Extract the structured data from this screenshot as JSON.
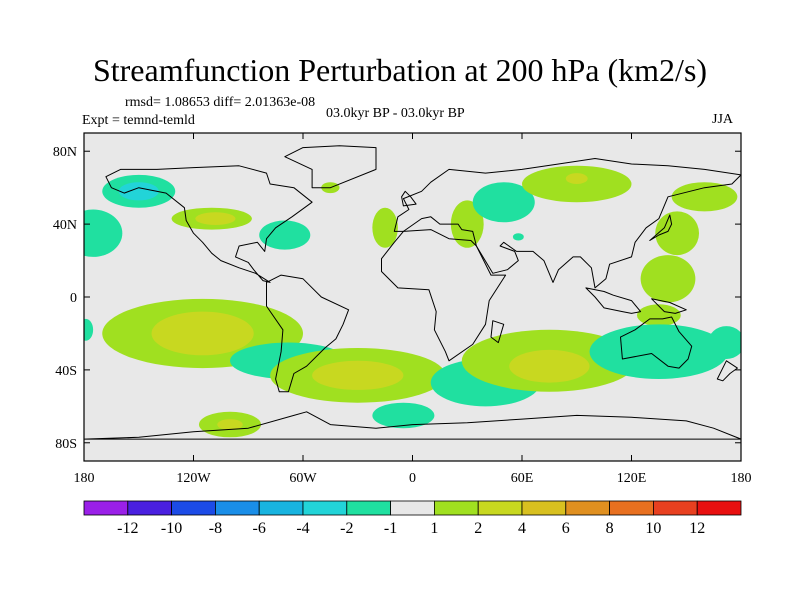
{
  "chart_data": {
    "type": "heatmap",
    "title": "Streamfunction Perturbation at 200 hPa (km2/s)",
    "stats": "rmsd= 1.08653 diff= 2.01363e-08",
    "experiment": "Expt = temnd-temld",
    "period": "03.0kyr BP - 03.0kyr BP",
    "season": "JJA",
    "x_axis": {
      "range": [
        -180,
        180
      ],
      "ticks": [
        {
          "value": -180,
          "label": "180"
        },
        {
          "value": -120,
          "label": "120W"
        },
        {
          "value": -60,
          "label": "60W"
        },
        {
          "value": 0,
          "label": "0"
        },
        {
          "value": 60,
          "label": "60E"
        },
        {
          "value": 120,
          "label": "120E"
        },
        {
          "value": 180,
          "label": "180"
        }
      ]
    },
    "y_axis": {
      "range": [
        -90,
        90
      ],
      "ticks": [
        {
          "value": 80,
          "label": "80N"
        },
        {
          "value": 40,
          "label": "40N"
        },
        {
          "value": 0,
          "label": "0"
        },
        {
          "value": -40,
          "label": "40S"
        },
        {
          "value": -80,
          "label": "80S"
        }
      ]
    },
    "colorbar": {
      "bins": [
        {
          "color": "#9a20e8"
        },
        {
          "color": "#4a20e0"
        },
        {
          "color": "#1c4be6"
        },
        {
          "color": "#1a8ee8"
        },
        {
          "color": "#18b4e0"
        },
        {
          "color": "#22d4d8"
        },
        {
          "color": "#20e0a0"
        },
        {
          "color": "#e8e8e8"
        },
        {
          "color": "#a0e020"
        },
        {
          "color": "#c8d820"
        },
        {
          "color": "#d8c020"
        },
        {
          "color": "#e09020"
        },
        {
          "color": "#e87020"
        },
        {
          "color": "#e84020"
        },
        {
          "color": "#e81010"
        }
      ],
      "labels": [
        "-12",
        "-10",
        "-8",
        "-6",
        "-4",
        "-2",
        "-1",
        "1",
        "2",
        "4",
        "6",
        "8",
        "10",
        "12"
      ]
    },
    "colors": {
      "background": "#e8e8e8",
      "pos1": "#a0e020",
      "pos2": "#c8d820",
      "pos3": "#d8c020",
      "neg1": "#20e0a0",
      "neg2": "#22d4d8"
    },
    "anomalies": [
      {
        "lon": -150,
        "lat": 58,
        "rlon": 20,
        "rlat": 9,
        "level": -2
      },
      {
        "lon": -150,
        "lat": 58,
        "rlon": 11,
        "rlat": 5,
        "level": -4
      },
      {
        "lon": -110,
        "lat": 43,
        "rlon": 22,
        "rlat": 6,
        "level": 2
      },
      {
        "lon": -108,
        "lat": 43,
        "rlon": 11,
        "rlat": 3.5,
        "level": 4
      },
      {
        "lon": -70,
        "lat": 34,
        "rlon": 14,
        "rlat": 8,
        "level": -1
      },
      {
        "lon": -175,
        "lat": 35,
        "rlon": 16,
        "rlat": 13,
        "level": -1
      },
      {
        "lon": -45,
        "lat": 60,
        "rlon": 5,
        "rlat": 3,
        "level": 2
      },
      {
        "lon": -15,
        "lat": 38,
        "rlon": 7,
        "rlat": 11,
        "level": 2
      },
      {
        "lon": 30,
        "lat": 40,
        "rlon": 9,
        "rlat": 13,
        "level": 2
      },
      {
        "lon": 50,
        "lat": 52,
        "rlon": 17,
        "rlat": 11,
        "level": -1
      },
      {
        "lon": 50,
        "lat": 48,
        "rlon": 10,
        "rlat": 5,
        "level": -2
      },
      {
        "lon": 58,
        "lat": 33,
        "rlon": 3,
        "rlat": 2,
        "level": -1
      },
      {
        "lon": 90,
        "lat": 62,
        "rlon": 30,
        "rlat": 10,
        "level": 2
      },
      {
        "lon": 90,
        "lat": 65,
        "rlon": 6,
        "rlat": 3,
        "level": 4
      },
      {
        "lon": 160,
        "lat": 55,
        "rlon": 18,
        "rlat": 8,
        "level": 2
      },
      {
        "lon": 145,
        "lat": 35,
        "rlon": 12,
        "rlat": 12,
        "level": 2
      },
      {
        "lon": 140,
        "lat": 10,
        "rlon": 15,
        "rlat": 13,
        "level": 2
      },
      {
        "lon": 135,
        "lat": -10,
        "rlon": 12,
        "rlat": 6,
        "level": 2
      },
      {
        "lon": -115,
        "lat": -20,
        "rlon": 55,
        "rlat": 19,
        "level": 2
      },
      {
        "lon": -115,
        "lat": -20,
        "rlon": 28,
        "rlat": 12,
        "level": 4
      },
      {
        "lon": -68,
        "lat": -35,
        "rlon": 32,
        "rlat": 10,
        "level": -1
      },
      {
        "lon": -68,
        "lat": -35,
        "rlon": 20,
        "rlat": 5,
        "level": -2
      },
      {
        "lon": -30,
        "lat": -43,
        "rlon": 48,
        "rlat": 15,
        "level": 2
      },
      {
        "lon": -30,
        "lat": -43,
        "rlon": 25,
        "rlat": 8,
        "level": 4
      },
      {
        "lon": 40,
        "lat": -47,
        "rlon": 30,
        "rlat": 13,
        "level": -1
      },
      {
        "lon": 40,
        "lat": -47,
        "rlon": 10,
        "rlat": 5,
        "level": -2
      },
      {
        "lon": 75,
        "lat": -35,
        "rlon": 48,
        "rlat": 17,
        "level": 2
      },
      {
        "lon": 75,
        "lat": -38,
        "rlon": 22,
        "rlat": 9,
        "level": 4
      },
      {
        "lon": 135,
        "lat": -30,
        "rlon": 38,
        "rlat": 15,
        "level": -1
      },
      {
        "lon": 130,
        "lat": -28,
        "rlon": 20,
        "rlat": 7,
        "level": -2
      },
      {
        "lon": 172,
        "lat": -25,
        "rlon": 10,
        "rlat": 9,
        "level": -1
      },
      {
        "lon": -100,
        "lat": -70,
        "rlon": 17,
        "rlat": 7,
        "level": 2
      },
      {
        "lon": -100,
        "lat": -70,
        "rlon": 7,
        "rlat": 3,
        "level": 4
      },
      {
        "lon": -5,
        "lat": -65,
        "rlon": 17,
        "rlat": 7,
        "level": -1
      },
      {
        "lon": -179,
        "lat": -18,
        "rlon": 4,
        "rlat": 6,
        "level": -1
      }
    ],
    "continents": [
      {
        "name": "North America",
        "points": [
          [
            -168,
            66
          ],
          [
            -160,
            70
          ],
          [
            -140,
            70
          ],
          [
            -120,
            71
          ],
          [
            -95,
            72
          ],
          [
            -80,
            68
          ],
          [
            -78,
            62
          ],
          [
            -65,
            60
          ],
          [
            -55,
            52
          ],
          [
            -66,
            44
          ],
          [
            -75,
            38
          ],
          [
            -80,
            32
          ],
          [
            -81,
            25
          ],
          [
            -85,
            30
          ],
          [
            -95,
            28
          ],
          [
            -97,
            22
          ],
          [
            -90,
            19
          ],
          [
            -87,
            15
          ],
          [
            -82,
            9
          ],
          [
            -78,
            8
          ],
          [
            -86,
            13
          ],
          [
            -95,
            16
          ],
          [
            -105,
            20
          ],
          [
            -110,
            24
          ],
          [
            -115,
            30
          ],
          [
            -120,
            35
          ],
          [
            -124,
            42
          ],
          [
            -125,
            49
          ],
          [
            -135,
            57
          ],
          [
            -150,
            60
          ],
          [
            -158,
            57
          ],
          [
            -165,
            60
          ]
        ]
      },
      {
        "name": "Greenland",
        "points": [
          [
            -55,
            60
          ],
          [
            -45,
            60
          ],
          [
            -20,
            70
          ],
          [
            -20,
            82
          ],
          [
            -40,
            83
          ],
          [
            -60,
            82
          ],
          [
            -70,
            77
          ],
          [
            -55,
            70
          ]
        ]
      },
      {
        "name": "South America",
        "points": [
          [
            -80,
            8
          ],
          [
            -72,
            12
          ],
          [
            -60,
            10
          ],
          [
            -50,
            0
          ],
          [
            -35,
            -7
          ],
          [
            -38,
            -15
          ],
          [
            -42,
            -23
          ],
          [
            -48,
            -28
          ],
          [
            -58,
            -38
          ],
          [
            -65,
            -42
          ],
          [
            -68,
            -52
          ],
          [
            -73,
            -52
          ],
          [
            -75,
            -45
          ],
          [
            -72,
            -30
          ],
          [
            -71,
            -18
          ],
          [
            -80,
            -5
          ]
        ]
      },
      {
        "name": "Eurasia",
        "points": [
          [
            -10,
            36
          ],
          [
            -8,
            44
          ],
          [
            -2,
            48
          ],
          [
            -5,
            54
          ],
          [
            5,
            58
          ],
          [
            10,
            63
          ],
          [
            20,
            70
          ],
          [
            40,
            68
          ],
          [
            60,
            70
          ],
          [
            80,
            73
          ],
          [
            100,
            76
          ],
          [
            120,
            73
          ],
          [
            140,
            72
          ],
          [
            160,
            70
          ],
          [
            180,
            67
          ],
          [
            175,
            62
          ],
          [
            160,
            60
          ],
          [
            140,
            55
          ],
          [
            135,
            43
          ],
          [
            128,
            38
          ],
          [
            122,
            30
          ],
          [
            120,
            22
          ],
          [
            108,
            18
          ],
          [
            106,
            10
          ],
          [
            100,
            5
          ],
          [
            98,
            16
          ],
          [
            92,
            22
          ],
          [
            88,
            22
          ],
          [
            80,
            15
          ],
          [
            77,
            8
          ],
          [
            72,
            20
          ],
          [
            66,
            25
          ],
          [
            57,
            25
          ],
          [
            50,
            30
          ],
          [
            48,
            28
          ],
          [
            56,
            25
          ],
          [
            58,
            20
          ],
          [
            52,
            15
          ],
          [
            44,
            13
          ],
          [
            35,
            28
          ],
          [
            33,
            36
          ],
          [
            27,
            37
          ],
          [
            25,
            40
          ],
          [
            15,
            40
          ],
          [
            10,
            44
          ],
          [
            5,
            43
          ],
          [
            -5,
            36
          ]
        ]
      },
      {
        "name": "Africa",
        "points": [
          [
            -17,
            21
          ],
          [
            -10,
            30
          ],
          [
            -5,
            36
          ],
          [
            10,
            37
          ],
          [
            20,
            32
          ],
          [
            32,
            31
          ],
          [
            35,
            28
          ],
          [
            43,
            12
          ],
          [
            51,
            12
          ],
          [
            42,
            -2
          ],
          [
            40,
            -15
          ],
          [
            33,
            -26
          ],
          [
            20,
            -35
          ],
          [
            18,
            -30
          ],
          [
            12,
            -18
          ],
          [
            13,
            -8
          ],
          [
            9,
            4
          ],
          [
            -8,
            5
          ],
          [
            -17,
            14
          ]
        ]
      },
      {
        "name": "Madagascar",
        "points": [
          [
            44,
            -13
          ],
          [
            50,
            -15
          ],
          [
            47,
            -25
          ],
          [
            43,
            -22
          ]
        ]
      },
      {
        "name": "Australia",
        "points": [
          [
            114,
            -22
          ],
          [
            122,
            -18
          ],
          [
            130,
            -12
          ],
          [
            137,
            -12
          ],
          [
            142,
            -11
          ],
          [
            146,
            -19
          ],
          [
            153,
            -27
          ],
          [
            151,
            -34
          ],
          [
            146,
            -39
          ],
          [
            140,
            -38
          ],
          [
            131,
            -31
          ],
          [
            115,
            -34
          ]
        ]
      },
      {
        "name": "Japan",
        "points": [
          [
            130,
            31
          ],
          [
            135,
            34
          ],
          [
            140,
            36
          ],
          [
            142,
            40
          ],
          [
            141,
            45
          ],
          [
            138,
            38
          ]
        ]
      },
      {
        "name": "Britain",
        "points": [
          [
            -5,
            50
          ],
          [
            2,
            51
          ],
          [
            -1,
            55
          ],
          [
            -4,
            58
          ],
          [
            -6,
            55
          ]
        ]
      },
      {
        "name": "Indonesia",
        "points": [
          [
            95,
            5
          ],
          [
            100,
            0
          ],
          [
            105,
            -6
          ],
          [
            115,
            -8
          ],
          [
            120,
            -9
          ],
          [
            125,
            -8
          ],
          [
            120,
            -2
          ],
          [
            110,
            1
          ],
          [
            105,
            3
          ]
        ]
      },
      {
        "name": "New Guinea",
        "points": [
          [
            131,
            -1
          ],
          [
            141,
            -3
          ],
          [
            150,
            -7
          ],
          [
            144,
            -9
          ],
          [
            138,
            -8
          ]
        ]
      },
      {
        "name": "New Zealand",
        "points": [
          [
            172,
            -35
          ],
          [
            178,
            -39
          ],
          [
            174,
            -42
          ],
          [
            170,
            -46
          ],
          [
            167,
            -45
          ]
        ]
      },
      {
        "name": "Antarctica",
        "points": [
          [
            -180,
            -78
          ],
          [
            -150,
            -77
          ],
          [
            -120,
            -74
          ],
          [
            -90,
            -72
          ],
          [
            -65,
            -65
          ],
          [
            -58,
            -63
          ],
          [
            -45,
            -70
          ],
          [
            -20,
            -72
          ],
          [
            0,
            -70
          ],
          [
            30,
            -69
          ],
          [
            60,
            -67
          ],
          [
            90,
            -65
          ],
          [
            120,
            -66
          ],
          [
            150,
            -68
          ],
          [
            165,
            -72
          ],
          [
            180,
            -78
          ]
        ]
      }
    ]
  }
}
